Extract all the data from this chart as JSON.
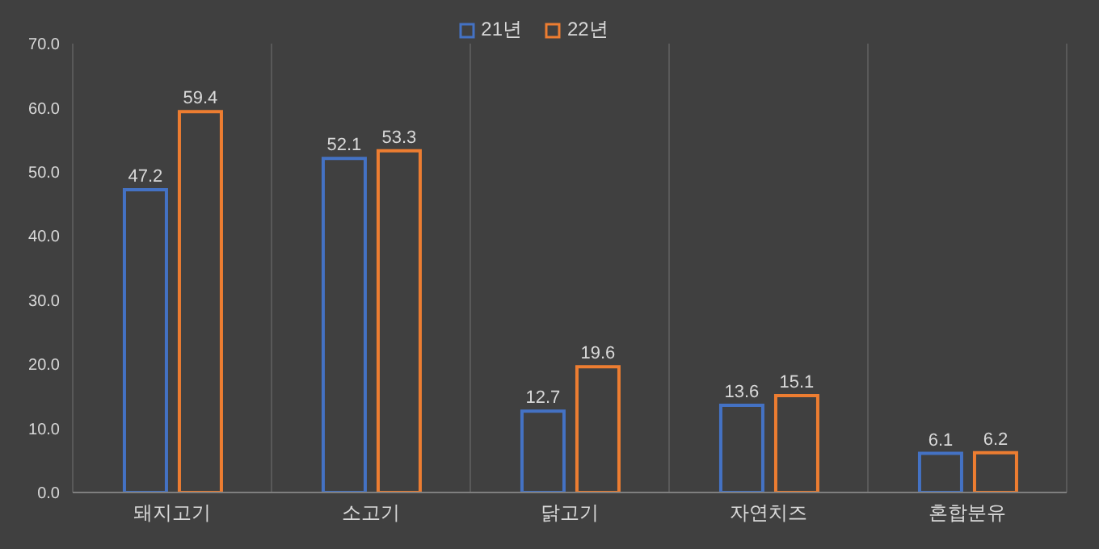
{
  "chart_data": {
    "type": "bar",
    "categories": [
      "돼지고기",
      "소고기",
      "닭고기",
      "자연치즈",
      "혼합분유"
    ],
    "series": [
      {
        "name": "21년",
        "color": "#4472c4",
        "values": [
          47.2,
          52.1,
          12.7,
          13.6,
          6.1
        ]
      },
      {
        "name": "22년",
        "color": "#ed7d31",
        "values": [
          59.4,
          53.3,
          19.6,
          15.1,
          6.2
        ]
      }
    ],
    "ylim": [
      0,
      70
    ],
    "yticks": [
      {
        "value": 0,
        "label": "0.0"
      },
      {
        "value": 10,
        "label": "10.0"
      },
      {
        "value": 20,
        "label": "20.0"
      },
      {
        "value": 30,
        "label": "30.0"
      },
      {
        "value": 40,
        "label": "40.0"
      },
      {
        "value": 50,
        "label": "50.0"
      },
      {
        "value": 60,
        "label": "60.0"
      },
      {
        "value": 70,
        "label": "70.0"
      }
    ],
    "grid": "x",
    "legend": "top",
    "data_labels": true
  }
}
